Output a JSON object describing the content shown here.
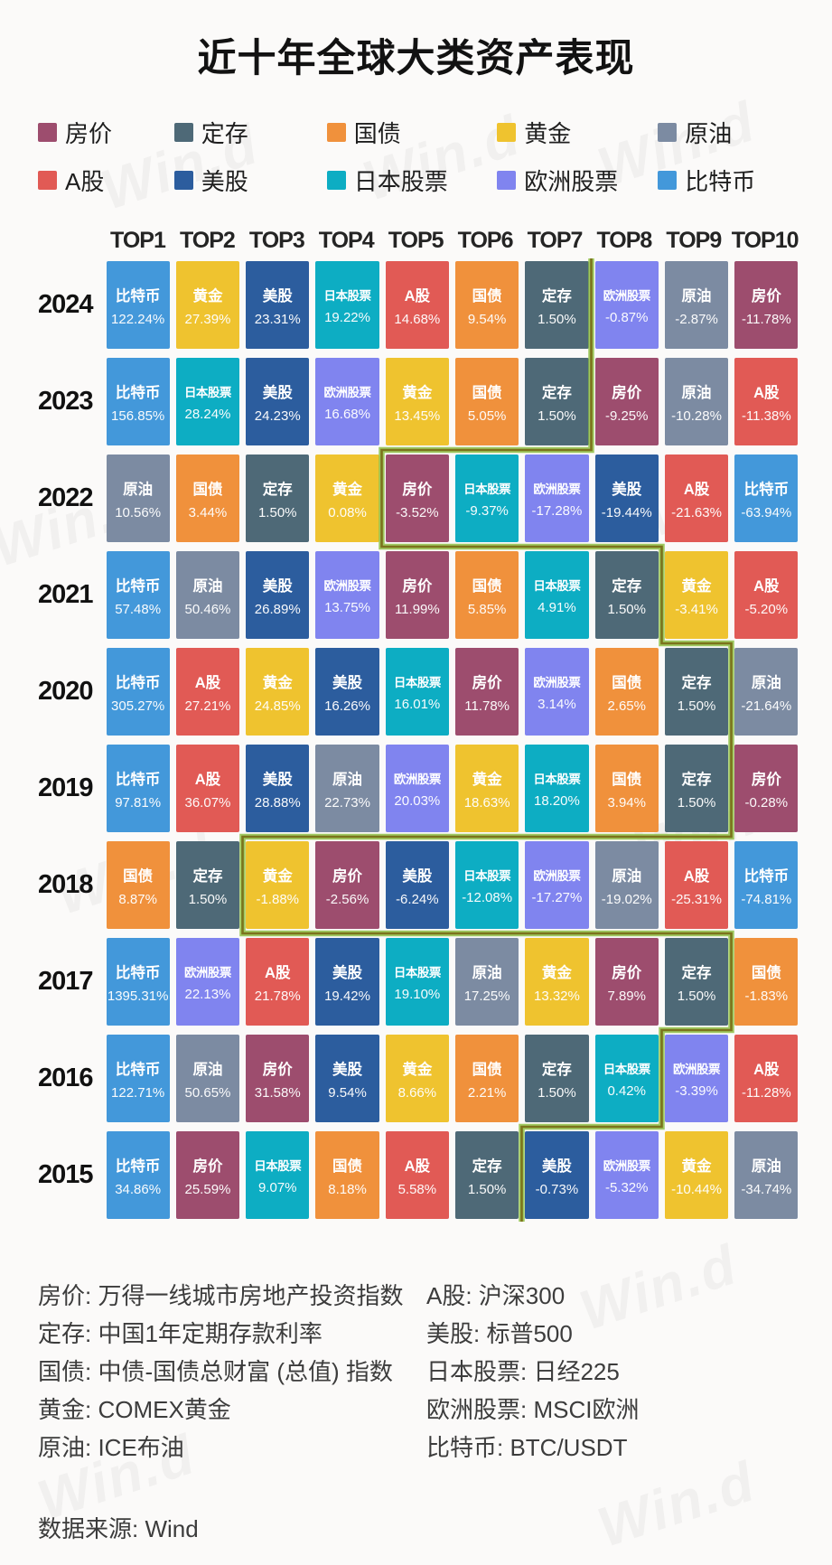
{
  "title": "近十年全球大类资产表现",
  "watermark_text": "Win.d",
  "colors": {
    "background": "#fbfaf9",
    "divider_outer": "#8fc045",
    "divider_inner": "#7b731c"
  },
  "legend": [
    {
      "label": "房价",
      "color": "#9d4d6e"
    },
    {
      "label": "定存",
      "color": "#4e6977"
    },
    {
      "label": "国债",
      "color": "#f0913c"
    },
    {
      "label": "黄金",
      "color": "#efc32f"
    },
    {
      "label": "原油",
      "color": "#7c8ba2"
    },
    {
      "label": "A股",
      "color": "#e15a55"
    },
    {
      "label": "美股",
      "color": "#2c5d9e"
    },
    {
      "label": "日本股票",
      "color": "#0dadc3"
    },
    {
      "label": "欧洲股票",
      "color": "#8084ef"
    },
    {
      "label": "比特币",
      "color": "#4398da"
    }
  ],
  "chart_data": {
    "type": "heatmap",
    "title": "近十年全球大类资产表现",
    "columns": [
      "TOP1",
      "TOP2",
      "TOP3",
      "TOP4",
      "TOP5",
      "TOP6",
      "TOP7",
      "TOP8",
      "TOP9",
      "TOP10"
    ],
    "divider_note": "stepped line separates positive returns (left) from negative returns (right); divider_after = number of positive cells in that year",
    "rows": [
      {
        "year": "2024",
        "divider_after": 7,
        "cells": [
          {
            "asset": "比特币",
            "value": "122.24%"
          },
          {
            "asset": "黄金",
            "value": "27.39%"
          },
          {
            "asset": "美股",
            "value": "23.31%"
          },
          {
            "asset": "日本股票",
            "value": "19.22%"
          },
          {
            "asset": "A股",
            "value": "14.68%"
          },
          {
            "asset": "国债",
            "value": "9.54%"
          },
          {
            "asset": "定存",
            "value": "1.50%"
          },
          {
            "asset": "欧洲股票",
            "value": "-0.87%"
          },
          {
            "asset": "原油",
            "value": "-2.87%"
          },
          {
            "asset": "房价",
            "value": "-11.78%"
          }
        ]
      },
      {
        "year": "2023",
        "divider_after": 7,
        "cells": [
          {
            "asset": "比特币",
            "value": "156.85%"
          },
          {
            "asset": "日本股票",
            "value": "28.24%"
          },
          {
            "asset": "美股",
            "value": "24.23%"
          },
          {
            "asset": "欧洲股票",
            "value": "16.68%"
          },
          {
            "asset": "黄金",
            "value": "13.45%"
          },
          {
            "asset": "国债",
            "value": "5.05%"
          },
          {
            "asset": "定存",
            "value": "1.50%"
          },
          {
            "asset": "房价",
            "value": "-9.25%"
          },
          {
            "asset": "原油",
            "value": "-10.28%"
          },
          {
            "asset": "A股",
            "value": "-11.38%"
          }
        ]
      },
      {
        "year": "2022",
        "divider_after": 4,
        "cells": [
          {
            "asset": "原油",
            "value": "10.56%"
          },
          {
            "asset": "国债",
            "value": "3.44%"
          },
          {
            "asset": "定存",
            "value": "1.50%"
          },
          {
            "asset": "黄金",
            "value": "0.08%"
          },
          {
            "asset": "房价",
            "value": "-3.52%"
          },
          {
            "asset": "日本股票",
            "value": "-9.37%"
          },
          {
            "asset": "欧洲股票",
            "value": "-17.28%"
          },
          {
            "asset": "美股",
            "value": "-19.44%"
          },
          {
            "asset": "A股",
            "value": "-21.63%"
          },
          {
            "asset": "比特币",
            "value": "-63.94%"
          }
        ]
      },
      {
        "year": "2021",
        "divider_after": 8,
        "cells": [
          {
            "asset": "比特币",
            "value": "57.48%"
          },
          {
            "asset": "原油",
            "value": "50.46%"
          },
          {
            "asset": "美股",
            "value": "26.89%"
          },
          {
            "asset": "欧洲股票",
            "value": "13.75%"
          },
          {
            "asset": "房价",
            "value": "11.99%"
          },
          {
            "asset": "国债",
            "value": "5.85%"
          },
          {
            "asset": "日本股票",
            "value": "4.91%"
          },
          {
            "asset": "定存",
            "value": "1.50%"
          },
          {
            "asset": "黄金",
            "value": "-3.41%"
          },
          {
            "asset": "A股",
            "value": "-5.20%"
          }
        ]
      },
      {
        "year": "2020",
        "divider_after": 9,
        "cells": [
          {
            "asset": "比特币",
            "value": "305.27%"
          },
          {
            "asset": "A股",
            "value": "27.21%"
          },
          {
            "asset": "黄金",
            "value": "24.85%"
          },
          {
            "asset": "美股",
            "value": "16.26%"
          },
          {
            "asset": "日本股票",
            "value": "16.01%"
          },
          {
            "asset": "房价",
            "value": "11.78%"
          },
          {
            "asset": "欧洲股票",
            "value": "3.14%"
          },
          {
            "asset": "国债",
            "value": "2.65%"
          },
          {
            "asset": "定存",
            "value": "1.50%"
          },
          {
            "asset": "原油",
            "value": "-21.64%"
          }
        ]
      },
      {
        "year": "2019",
        "divider_after": 9,
        "cells": [
          {
            "asset": "比特币",
            "value": "97.81%"
          },
          {
            "asset": "A股",
            "value": "36.07%"
          },
          {
            "asset": "美股",
            "value": "28.88%"
          },
          {
            "asset": "原油",
            "value": "22.73%"
          },
          {
            "asset": "欧洲股票",
            "value": "20.03%"
          },
          {
            "asset": "黄金",
            "value": "18.63%"
          },
          {
            "asset": "日本股票",
            "value": "18.20%"
          },
          {
            "asset": "国债",
            "value": "3.94%"
          },
          {
            "asset": "定存",
            "value": "1.50%"
          },
          {
            "asset": "房价",
            "value": "-0.28%"
          }
        ]
      },
      {
        "year": "2018",
        "divider_after": 2,
        "cells": [
          {
            "asset": "国债",
            "value": "8.87%"
          },
          {
            "asset": "定存",
            "value": "1.50%"
          },
          {
            "asset": "黄金",
            "value": "-1.88%"
          },
          {
            "asset": "房价",
            "value": "-2.56%"
          },
          {
            "asset": "美股",
            "value": "-6.24%"
          },
          {
            "asset": "日本股票",
            "value": "-12.08%"
          },
          {
            "asset": "欧洲股票",
            "value": "-17.27%"
          },
          {
            "asset": "原油",
            "value": "-19.02%"
          },
          {
            "asset": "A股",
            "value": "-25.31%"
          },
          {
            "asset": "比特币",
            "value": "-74.81%"
          }
        ]
      },
      {
        "year": "2017",
        "divider_after": 9,
        "cells": [
          {
            "asset": "比特币",
            "value": "1395.31%"
          },
          {
            "asset": "欧洲股票",
            "value": "22.13%"
          },
          {
            "asset": "A股",
            "value": "21.78%"
          },
          {
            "asset": "美股",
            "value": "19.42%"
          },
          {
            "asset": "日本股票",
            "value": "19.10%"
          },
          {
            "asset": "原油",
            "value": "17.25%"
          },
          {
            "asset": "黄金",
            "value": "13.32%"
          },
          {
            "asset": "房价",
            "value": "7.89%"
          },
          {
            "asset": "定存",
            "value": "1.50%"
          },
          {
            "asset": "国债",
            "value": "-1.83%"
          }
        ]
      },
      {
        "year": "2016",
        "divider_after": 8,
        "cells": [
          {
            "asset": "比特币",
            "value": "122.71%"
          },
          {
            "asset": "原油",
            "value": "50.65%"
          },
          {
            "asset": "房价",
            "value": "31.58%"
          },
          {
            "asset": "美股",
            "value": "9.54%"
          },
          {
            "asset": "黄金",
            "value": "8.66%"
          },
          {
            "asset": "国债",
            "value": "2.21%"
          },
          {
            "asset": "定存",
            "value": "1.50%"
          },
          {
            "asset": "日本股票",
            "value": "0.42%"
          },
          {
            "asset": "欧洲股票",
            "value": "-3.39%"
          },
          {
            "asset": "A股",
            "value": "-11.28%"
          }
        ]
      },
      {
        "year": "2015",
        "divider_after": 6,
        "cells": [
          {
            "asset": "比特币",
            "value": "34.86%"
          },
          {
            "asset": "房价",
            "value": "25.59%"
          },
          {
            "asset": "日本股票",
            "value": "9.07%"
          },
          {
            "asset": "国债",
            "value": "8.18%"
          },
          {
            "asset": "A股",
            "value": "5.58%"
          },
          {
            "asset": "定存",
            "value": "1.50%"
          },
          {
            "asset": "美股",
            "value": "-0.73%"
          },
          {
            "asset": "欧洲股票",
            "value": "-5.32%"
          },
          {
            "asset": "黄金",
            "value": "-10.44%"
          },
          {
            "asset": "原油",
            "value": "-34.74%"
          }
        ]
      }
    ]
  },
  "footnotes": {
    "left": [
      "房价: 万得一线城市房地产投资指数",
      "定存: 中国1年定期存款利率",
      "国债: 中债-国债总财富 (总值) 指数",
      "黄金: COMEX黄金",
      "原油: ICE布油"
    ],
    "right": [
      "A股: 沪深300",
      "美股: 标普500",
      "日本股票: 日经225",
      "欧洲股票: MSCI欧洲",
      "比特币: BTC/USDT"
    ]
  },
  "source": "数据来源: Wind"
}
